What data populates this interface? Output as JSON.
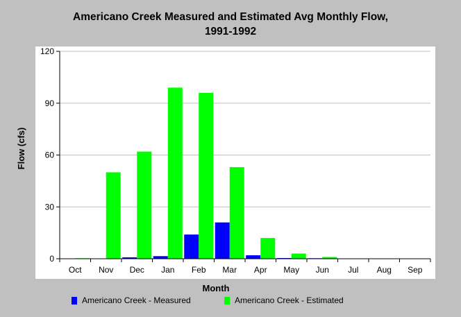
{
  "chart_data": {
    "type": "bar",
    "title": [
      "Americano Creek Measured and Estimated Avg Monthly Flow,",
      "1991-1992"
    ],
    "xlabel": "Month",
    "ylabel": "Flow (cfs)",
    "ylim": [
      0,
      120
    ],
    "yticks": [
      "0",
      "30",
      "60",
      "90",
      "120"
    ],
    "categories": [
      "Oct",
      "Nov",
      "Dec",
      "Jan",
      "Feb",
      "Mar",
      "Apr",
      "May",
      "Jun",
      "Jul",
      "Aug",
      "Sep"
    ],
    "series": [
      {
        "name": "Americano Creek - Measured",
        "color": "#0000ff",
        "values": [
          0,
          0,
          0.8,
          1.5,
          14,
          21,
          2,
          0.4,
          0.3,
          0,
          0,
          0
        ]
      },
      {
        "name": "Americano Creek - Estimated",
        "color": "#00ff00",
        "values": [
          0.3,
          50,
          62,
          99,
          96,
          53,
          12,
          3,
          1,
          0,
          0,
          0
        ]
      }
    ],
    "grid": true,
    "legend_position": "bottom"
  }
}
